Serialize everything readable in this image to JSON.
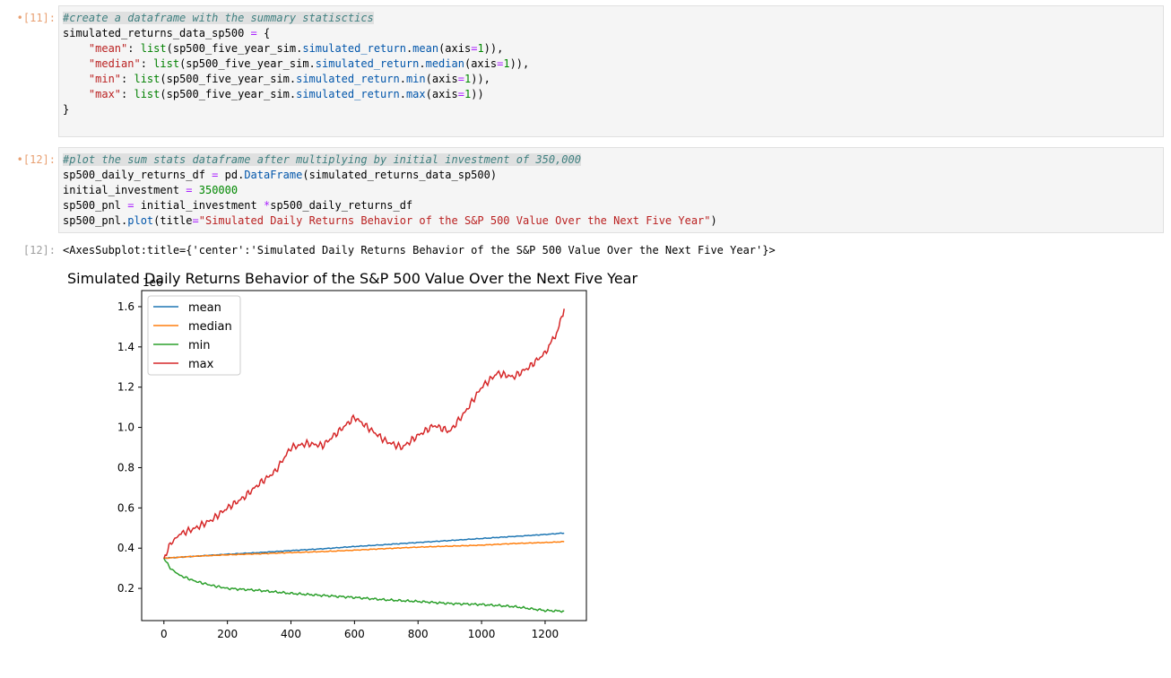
{
  "cells": [
    {
      "prompt": "[11]:",
      "prompt_marker": "•",
      "lines": [
        [
          {
            "t": "#create a dataframe with the summary statisctics",
            "c": "c-comment"
          }
        ],
        [
          {
            "t": "simulated_returns_data_sp500 "
          },
          {
            "t": "=",
            "c": "c-op"
          },
          {
            "t": " {"
          }
        ],
        [
          {
            "t": "    "
          },
          {
            "t": "\"mean\"",
            "c": "c-str"
          },
          {
            "t": ": "
          },
          {
            "t": "list",
            "c": "c-builtin"
          },
          {
            "t": "(sp500_five_year_sim."
          },
          {
            "t": "simulated_return",
            "c": "c-attr"
          },
          {
            "t": "."
          },
          {
            "t": "mean",
            "c": "c-attr"
          },
          {
            "t": "(axis"
          },
          {
            "t": "=",
            "c": "c-op"
          },
          {
            "t": "1",
            "c": "c-num"
          },
          {
            "t": ")),"
          }
        ],
        [
          {
            "t": "    "
          },
          {
            "t": "\"median\"",
            "c": "c-str"
          },
          {
            "t": ": "
          },
          {
            "t": "list",
            "c": "c-builtin"
          },
          {
            "t": "(sp500_five_year_sim."
          },
          {
            "t": "simulated_return",
            "c": "c-attr"
          },
          {
            "t": "."
          },
          {
            "t": "median",
            "c": "c-attr"
          },
          {
            "t": "(axis"
          },
          {
            "t": "=",
            "c": "c-op"
          },
          {
            "t": "1",
            "c": "c-num"
          },
          {
            "t": ")),"
          }
        ],
        [
          {
            "t": "    "
          },
          {
            "t": "\"min\"",
            "c": "c-str"
          },
          {
            "t": ": "
          },
          {
            "t": "list",
            "c": "c-builtin"
          },
          {
            "t": "(sp500_five_year_sim."
          },
          {
            "t": "simulated_return",
            "c": "c-attr"
          },
          {
            "t": "."
          },
          {
            "t": "min",
            "c": "c-attr"
          },
          {
            "t": "(axis"
          },
          {
            "t": "=",
            "c": "c-op"
          },
          {
            "t": "1",
            "c": "c-num"
          },
          {
            "t": ")),"
          }
        ],
        [
          {
            "t": "    "
          },
          {
            "t": "\"max\"",
            "c": "c-str"
          },
          {
            "t": ": "
          },
          {
            "t": "list",
            "c": "c-builtin"
          },
          {
            "t": "(sp500_five_year_sim."
          },
          {
            "t": "simulated_return",
            "c": "c-attr"
          },
          {
            "t": "."
          },
          {
            "t": "max",
            "c": "c-attr"
          },
          {
            "t": "(axis"
          },
          {
            "t": "=",
            "c": "c-op"
          },
          {
            "t": "1",
            "c": "c-num"
          },
          {
            "t": "))"
          }
        ],
        [
          {
            "t": "}"
          }
        ]
      ]
    },
    {
      "prompt": "[12]:",
      "prompt_marker": "•",
      "lines": [
        [
          {
            "t": "#plot the sum stats dataframe after multiplying by initial investment of 350,000",
            "c": "c-comment"
          }
        ],
        [
          {
            "t": "sp500_daily_returns_df "
          },
          {
            "t": "=",
            "c": "c-op"
          },
          {
            "t": " pd."
          },
          {
            "t": "DataFrame",
            "c": "c-attr"
          },
          {
            "t": "(simulated_returns_data_sp500)"
          }
        ],
        [
          {
            "t": "initial_investment "
          },
          {
            "t": "=",
            "c": "c-op"
          },
          {
            "t": " "
          },
          {
            "t": "350000",
            "c": "c-num"
          }
        ],
        [
          {
            "t": "sp500_pnl "
          },
          {
            "t": "=",
            "c": "c-op"
          },
          {
            "t": " initial_investment "
          },
          {
            "t": "*",
            "c": "c-op"
          },
          {
            "t": "sp500_daily_returns_df"
          }
        ],
        [
          {
            "t": "sp500_pnl."
          },
          {
            "t": "plot",
            "c": "c-attr"
          },
          {
            "t": "(title"
          },
          {
            "t": "=",
            "c": "c-op"
          },
          {
            "t": "\"Simulated Daily Returns Behavior of the S&P 500 Value Over the Next Five Year\"",
            "c": "c-str"
          },
          {
            "t": ")"
          }
        ]
      ]
    }
  ],
  "output": {
    "prompt": "[12]:",
    "text": "<AxesSubplot:title={'center':'Simulated Daily Returns Behavior of the S&P 500 Value Over the Next Five Year'}>"
  },
  "chart_data": {
    "type": "line",
    "title": "Simulated Daily Returns Behavior of the S&P 500 Value Over the Next Five Year",
    "offset_label": "1e6",
    "xlim": [
      -70,
      1330
    ],
    "ylim": [
      0.04,
      1.68
    ],
    "x_ticks": [
      0,
      200,
      400,
      600,
      800,
      1000,
      1200
    ],
    "x_tick_labels": [
      "0",
      "200",
      "400",
      "600",
      "800",
      "1000",
      "1200"
    ],
    "y_ticks": [
      0.2,
      0.4,
      0.6,
      0.8,
      1.0,
      1.2,
      1.4,
      1.6
    ],
    "y_tick_labels": [
      "0.2",
      "0.4",
      "0.6",
      "0.8",
      "1.0",
      "1.2",
      "1.4",
      "1.6"
    ],
    "legend_placement": "upper-left",
    "series": [
      {
        "name": "mean",
        "color": "#1f77b4",
        "x": [
          0,
          100,
          200,
          300,
          400,
          500,
          600,
          700,
          800,
          900,
          1000,
          1100,
          1200,
          1260
        ],
        "y": [
          0.35,
          0.36,
          0.37,
          0.378,
          0.388,
          0.397,
          0.408,
          0.418,
          0.428,
          0.438,
          0.448,
          0.458,
          0.468,
          0.475
        ]
      },
      {
        "name": "median",
        "color": "#ff7f0e",
        "x": [
          0,
          100,
          200,
          300,
          400,
          500,
          600,
          700,
          800,
          900,
          1000,
          1100,
          1200,
          1260
        ],
        "y": [
          0.35,
          0.36,
          0.367,
          0.372,
          0.378,
          0.383,
          0.39,
          0.398,
          0.405,
          0.41,
          0.415,
          0.423,
          0.428,
          0.432
        ]
      },
      {
        "name": "min",
        "color": "#2ca02c",
        "x": [
          0,
          20,
          50,
          100,
          150,
          200,
          300,
          400,
          500,
          600,
          700,
          800,
          900,
          1000,
          1100,
          1200,
          1260
        ],
        "y": [
          0.35,
          0.3,
          0.265,
          0.235,
          0.215,
          0.2,
          0.19,
          0.175,
          0.165,
          0.155,
          0.143,
          0.135,
          0.125,
          0.12,
          0.11,
          0.09,
          0.087
        ]
      },
      {
        "name": "max",
        "color": "#d62728",
        "x": [
          0,
          20,
          50,
          100,
          150,
          200,
          250,
          300,
          350,
          400,
          450,
          500,
          550,
          600,
          650,
          700,
          750,
          800,
          850,
          900,
          950,
          1000,
          1050,
          1100,
          1150,
          1200,
          1240,
          1260
        ],
        "y": [
          0.35,
          0.42,
          0.47,
          0.5,
          0.54,
          0.6,
          0.65,
          0.72,
          0.78,
          0.9,
          0.92,
          0.91,
          0.98,
          1.05,
          0.99,
          0.93,
          0.9,
          0.96,
          1.01,
          0.98,
          1.08,
          1.2,
          1.27,
          1.25,
          1.3,
          1.37,
          1.48,
          1.59
        ]
      }
    ]
  }
}
